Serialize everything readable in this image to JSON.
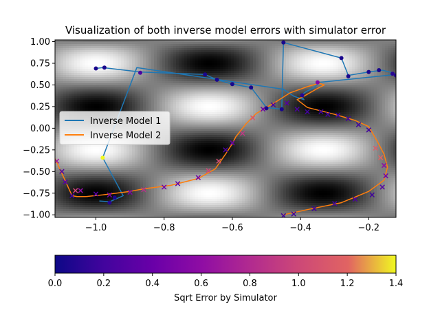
{
  "chart_data": {
    "type": "line",
    "title": "Visualization of both inverse model errors with simulator error",
    "xlabel": "",
    "ylabel": "",
    "xlim": [
      -1.12,
      -0.12
    ],
    "ylim": [
      -1.03,
      1.02
    ],
    "x_ticks": [
      -1.0,
      -0.8,
      -0.6,
      -0.4,
      -0.2
    ],
    "x_tick_labels": [
      "−1.0",
      "−0.8",
      "−0.6",
      "−0.4",
      "−0.2"
    ],
    "y_ticks": [
      1.0,
      0.75,
      0.5,
      0.25,
      0.0,
      -0.25,
      -0.5,
      -0.75,
      -1.0
    ],
    "y_tick_labels": [
      "1.00",
      "0.75",
      "0.50",
      "0.25",
      "0.00",
      "−0.25",
      "−0.50",
      "−0.75",
      "−1.00"
    ],
    "grid": false,
    "legend_position": "center-left",
    "background": {
      "type": "heatmap",
      "colormap": "gray",
      "function": "sin(2*pi*y) * cos(3*pi*x)"
    },
    "series": [
      {
        "name": "Inverse Model 1",
        "color": "#1f77b4",
        "x": [
          -1.0,
          -0.98,
          -0.87,
          -0.68,
          -0.645,
          -0.6,
          -0.545,
          -0.5,
          -0.455,
          -0.45,
          -0.28,
          -0.26,
          -0.2,
          -0.16,
          -0.13,
          -0.12,
          -0.345,
          -0.36,
          -0.38,
          -0.4,
          -0.39,
          -0.42,
          -0.45,
          -0.88,
          -0.98,
          -0.92,
          -0.96,
          -0.99
        ],
        "y": [
          0.69,
          0.7,
          0.65,
          0.62,
          0.56,
          0.51,
          0.47,
          0.24,
          0.22,
          0.99,
          0.81,
          0.61,
          0.65,
          0.67,
          0.64,
          0.62,
          0.53,
          0.47,
          0.43,
          0.38,
          0.33,
          0.37,
          0.45,
          0.7,
          -0.34,
          -0.78,
          -0.85,
          -0.84
        ]
      },
      {
        "name": "Inverse Model 2",
        "color": "#ff7f0e",
        "x": [
          -1.12,
          -1.1,
          -1.085,
          -1.07,
          -1.055,
          -1.03,
          -0.98,
          -0.9,
          -0.86,
          -0.78,
          -0.7,
          -0.65,
          -0.62,
          -0.6,
          -0.59,
          -0.56,
          -0.53,
          -0.5,
          -0.47,
          -0.43,
          -0.38,
          -0.345,
          -0.33,
          -0.35,
          -0.39,
          -0.41,
          -0.38,
          -0.3,
          -0.24,
          -0.2,
          -0.175,
          -0.155,
          -0.145,
          -0.155,
          -0.2,
          -0.28,
          -0.38,
          -0.45
        ],
        "y": [
          -0.35,
          -0.52,
          -0.65,
          -0.78,
          -0.79,
          -0.79,
          -0.77,
          -0.73,
          -0.7,
          -0.66,
          -0.58,
          -0.47,
          -0.3,
          -0.18,
          -0.1,
          0.05,
          0.17,
          0.24,
          0.31,
          0.41,
          0.48,
          0.52,
          0.5,
          0.46,
          0.37,
          0.33,
          0.24,
          0.16,
          0.09,
          0.02,
          -0.15,
          -0.3,
          -0.45,
          -0.6,
          -0.73,
          -0.86,
          -0.94,
          -1.0
        ]
      }
    ],
    "colorbar": {
      "label": "Sqrt Error by Simulator",
      "colormap": "plasma",
      "range": [
        0.0,
        1.4
      ],
      "ticks": [
        0.0,
        0.2,
        0.4,
        0.6,
        0.8,
        1.0,
        1.2,
        1.4
      ],
      "tick_labels": [
        "0.0",
        "0.2",
        "0.4",
        "0.6",
        "0.8",
        "1.0",
        "1.2",
        "1.4"
      ]
    },
    "error_points_model1": {
      "marker": "circle",
      "x": [
        -1.0,
        -0.975,
        -0.87,
        -0.68,
        -0.645,
        -0.6,
        -0.545,
        -0.5,
        -0.455,
        -0.45,
        -0.28,
        -0.26,
        -0.2,
        -0.17,
        -0.13,
        -0.12,
        -0.35,
        -0.395,
        -0.98,
        -0.945,
        -0.96
      ],
      "y": [
        0.69,
        0.7,
        0.64,
        0.62,
        0.56,
        0.51,
        0.47,
        0.23,
        0.22,
        0.99,
        0.81,
        0.6,
        0.65,
        0.67,
        0.63,
        0.61,
        0.53,
        0.38,
        -0.34,
        -0.8,
        -0.86
      ],
      "error": [
        0.05,
        0.05,
        0.25,
        0.05,
        0.05,
        0.05,
        0.05,
        0.05,
        0.05,
        0.05,
        0.05,
        0.05,
        0.05,
        0.05,
        0.1,
        0.1,
        0.55,
        0.1,
        1.4,
        0.05,
        0.1
      ]
    },
    "error_points_model2": {
      "marker": "x",
      "x": [
        -1.115,
        -1.1,
        -1.09,
        -1.07,
        -1.06,
        -1.045,
        -1.0,
        -0.96,
        -0.9,
        -0.86,
        -0.8,
        -0.76,
        -0.7,
        -0.67,
        -0.64,
        -0.62,
        -0.6,
        -0.57,
        -0.54,
        -0.51,
        -0.48,
        -0.44,
        -0.41,
        -0.38,
        -0.34,
        -0.32,
        -0.29,
        -0.26,
        -0.23,
        -0.2,
        -0.18,
        -0.165,
        -0.155,
        -0.15,
        -0.16,
        -0.19,
        -0.24,
        -0.3,
        -0.36,
        -0.42,
        -0.45
      ],
      "y": [
        -0.38,
        -0.5,
        -0.62,
        -0.78,
        -0.72,
        -0.72,
        -0.76,
        -0.77,
        -0.74,
        -0.71,
        -0.68,
        -0.64,
        -0.57,
        -0.49,
        -0.38,
        -0.25,
        -0.17,
        -0.06,
        0.12,
        0.22,
        0.27,
        0.29,
        0.22,
        0.19,
        0.19,
        0.16,
        0.15,
        0.11,
        0.04,
        -0.02,
        -0.23,
        -0.34,
        -0.43,
        -0.55,
        -0.68,
        -0.77,
        -0.82,
        -0.87,
        -0.93,
        -0.99,
        -1.01
      ],
      "error": [
        0.7,
        0.3,
        0.3,
        0.2,
        1.0,
        0.6,
        0.3,
        0.5,
        0.5,
        0.85,
        0.45,
        0.35,
        0.45,
        1.0,
        1.05,
        0.25,
        0.4,
        0.9,
        1.1,
        0.4,
        0.25,
        0.3,
        0.25,
        0.2,
        0.2,
        0.2,
        0.2,
        0.2,
        0.2,
        0.2,
        1.15,
        1.2,
        0.6,
        0.45,
        0.3,
        0.2,
        0.25,
        0.2,
        0.2,
        0.2,
        0.2
      ]
    }
  }
}
